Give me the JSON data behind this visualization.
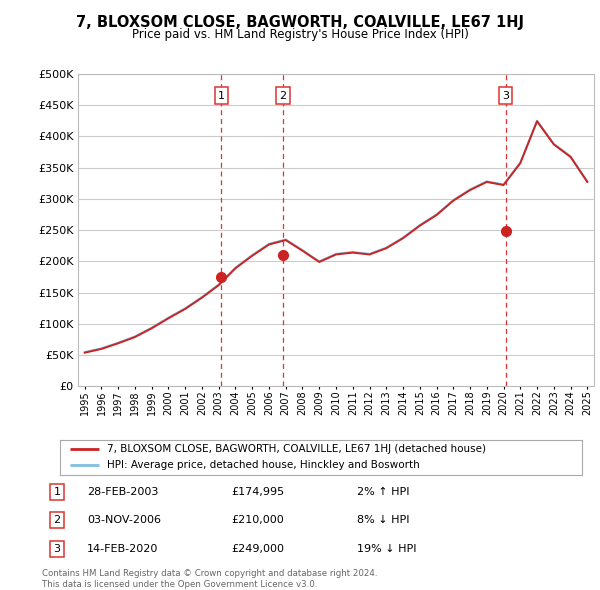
{
  "title": "7, BLOXSOM CLOSE, BAGWORTH, COALVILLE, LE67 1HJ",
  "subtitle": "Price paid vs. HM Land Registry's House Price Index (HPI)",
  "legend_line1": "7, BLOXSOM CLOSE, BAGWORTH, COALVILLE, LE67 1HJ (detached house)",
  "legend_line2": "HPI: Average price, detached house, Hinckley and Bosworth",
  "footer1": "Contains HM Land Registry data © Crown copyright and database right 2024.",
  "footer2": "This data is licensed under the Open Government Licence v3.0.",
  "hpi_color": "#7fbfdf",
  "price_color": "#cc2222",
  "vline_color": "#dd3333",
  "background_color": "#ffffff",
  "grid_color": "#cccccc",
  "ylim": [
    0,
    500000
  ],
  "xlim_start": 1994.6,
  "xlim_end": 2025.4,
  "t1_x": 2003.16,
  "t1_y": 174995,
  "t2_x": 2006.84,
  "t2_y": 210000,
  "t3_x": 2020.12,
  "t3_y": 249000,
  "hpi_x": [
    1995,
    1996,
    1997,
    1998,
    1999,
    2000,
    2001,
    2002,
    2003,
    2004,
    2005,
    2006,
    2007,
    2008,
    2009,
    2010,
    2011,
    2012,
    2013,
    2014,
    2015,
    2016,
    2017,
    2018,
    2019,
    2020,
    2021,
    2022,
    2023,
    2024,
    2025
  ],
  "hpi_y": [
    55000,
    61000,
    70000,
    80000,
    94000,
    110000,
    125000,
    143000,
    163000,
    190000,
    210000,
    228000,
    235000,
    218000,
    200000,
    212000,
    215000,
    212000,
    222000,
    238000,
    258000,
    275000,
    298000,
    315000,
    328000,
    323000,
    358000,
    425000,
    388000,
    368000,
    328000
  ],
  "red_y": [
    54000,
    60000,
    69000,
    79000,
    93000,
    109000,
    124000,
    142000,
    162000,
    189000,
    209000,
    227000,
    234000,
    217000,
    199000,
    211000,
    214000,
    211000,
    221000,
    237000,
    257000,
    274000,
    297000,
    314000,
    327000,
    322000,
    357000,
    424000,
    387000,
    367000,
    327000
  ],
  "table": [
    [
      1,
      "28-FEB-2003",
      "£174,995",
      "2% ↑ HPI"
    ],
    [
      2,
      "03-NOV-2006",
      "£210,000",
      "8% ↓ HPI"
    ],
    [
      3,
      "14-FEB-2020",
      "£249,000",
      "19% ↓ HPI"
    ]
  ]
}
